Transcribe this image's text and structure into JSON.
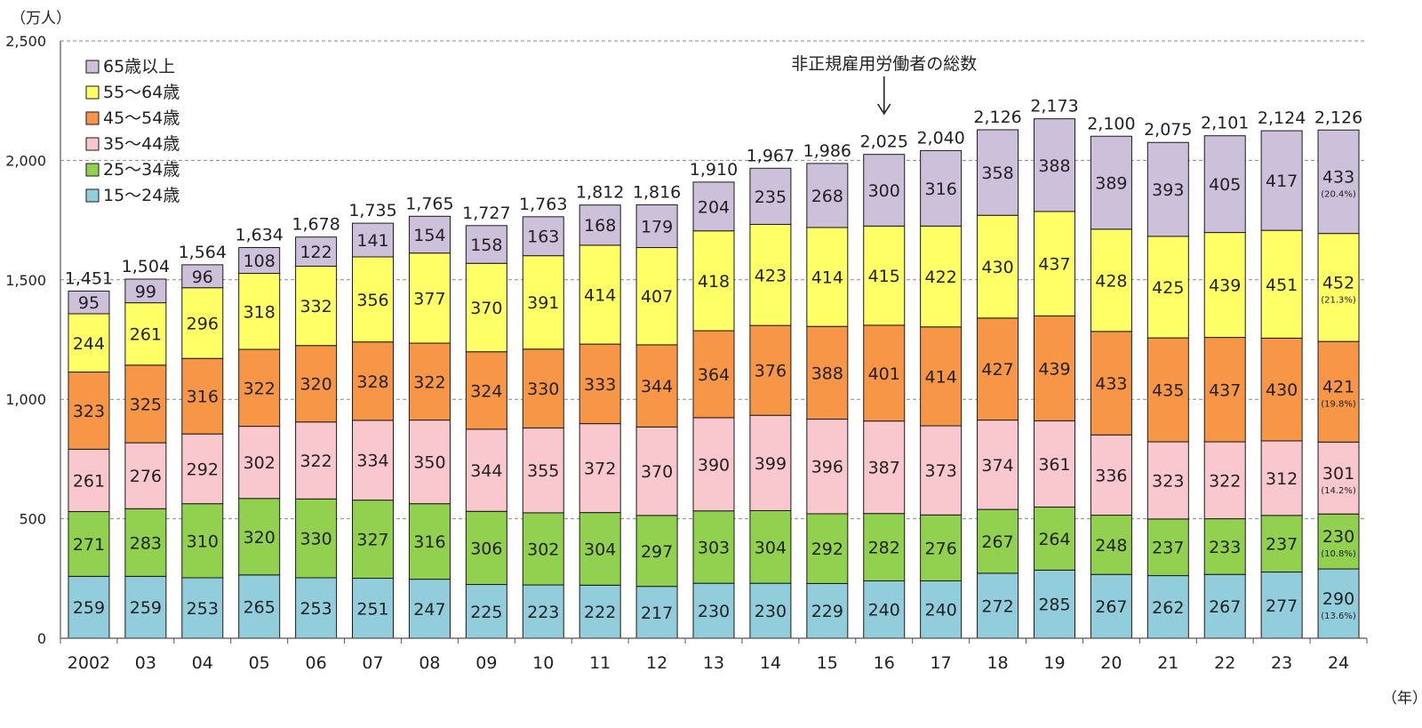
{
  "chart_data": {
    "type": "bar",
    "stacked": true,
    "title": "",
    "ylabel": "（万人）",
    "xlabel": "（年）",
    "ylim": [
      0,
      2500
    ],
    "yticks": [
      "0",
      "500",
      "1,000",
      "1,500",
      "2,000",
      "2,500"
    ],
    "grid": true,
    "legend_position": "top-left",
    "categories": [
      "2002",
      "03",
      "04",
      "05",
      "06",
      "07",
      "08",
      "09",
      "10",
      "11",
      "12",
      "13",
      "14",
      "15",
      "16",
      "17",
      "18",
      "19",
      "20",
      "21",
      "22",
      "23",
      "24"
    ],
    "series": [
      {
        "name": "15～24歳",
        "color": "#92CDDC",
        "values": [
          259,
          259,
          253,
          265,
          253,
          251,
          247,
          225,
          223,
          222,
          217,
          230,
          230,
          229,
          240,
          240,
          272,
          285,
          267,
          262,
          267,
          277,
          290
        ]
      },
      {
        "name": "25～34歳",
        "color": "#92D050",
        "values": [
          271,
          283,
          310,
          320,
          330,
          327,
          316,
          306,
          302,
          304,
          297,
          303,
          304,
          292,
          282,
          276,
          267,
          264,
          248,
          237,
          233,
          237,
          230
        ]
      },
      {
        "name": "35～44歳",
        "color": "#F9C7CE",
        "values": [
          261,
          276,
          292,
          302,
          322,
          334,
          350,
          344,
          355,
          372,
          370,
          390,
          399,
          396,
          387,
          373,
          374,
          361,
          336,
          323,
          322,
          312,
          301
        ]
      },
      {
        "name": "45～54歳",
        "color": "#F79646",
        "values": [
          323,
          325,
          316,
          322,
          320,
          328,
          322,
          324,
          330,
          333,
          344,
          364,
          376,
          388,
          401,
          414,
          427,
          439,
          433,
          435,
          437,
          430,
          421
        ]
      },
      {
        "name": "55～64歳",
        "color": "#FFFF66",
        "values": [
          244,
          261,
          296,
          318,
          332,
          356,
          377,
          370,
          391,
          414,
          407,
          418,
          423,
          414,
          415,
          422,
          430,
          437,
          428,
          425,
          439,
          451,
          452
        ]
      },
      {
        "name": "65歳以上",
        "color": "#CCC0DA",
        "values": [
          95,
          99,
          96,
          108,
          122,
          141,
          154,
          158,
          163,
          168,
          179,
          204,
          235,
          268,
          300,
          316,
          358,
          388,
          389,
          393,
          405,
          417,
          433
        ]
      }
    ],
    "totals": [
      "1,451",
      "1,504",
      "1,564",
      "1,634",
      "1,678",
      "1,735",
      "1,765",
      "1,727",
      "1,763",
      "1,812",
      "1,816",
      "1,910",
      "1,967",
      "1,986",
      "2,025",
      "2,040",
      "2,126",
      "2,173",
      "2,100",
      "2,075",
      "2,101",
      "2,124",
      "2,126"
    ],
    "last_bar_percentages": [
      "(13.6%)",
      "(10.8%)",
      "(14.2%)",
      "(19.8%)",
      "(21.3%)",
      "(20.4%)"
    ],
    "annotations": [
      {
        "text": "非正規雇用労働者の総数",
        "points_to_category": "16"
      }
    ]
  }
}
